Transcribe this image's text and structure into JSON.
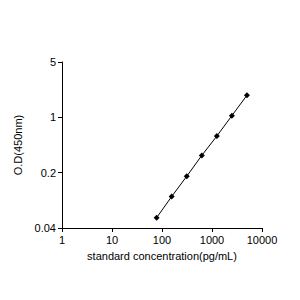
{
  "chart_data": {
    "type": "line",
    "xlabel": "standard concentration(pg/mL)",
    "ylabel": "O.D(450nm)",
    "x": [
      78.125,
      156.25,
      312.5,
      625,
      1250,
      2500,
      5000
    ],
    "values": [
      0.054,
      0.1,
      0.18,
      0.33,
      0.58,
      1.05,
      1.9
    ],
    "xlim": [
      1,
      10000
    ],
    "xticks": [
      1,
      10,
      100,
      1000,
      10000
    ],
    "ylim": [
      0.04,
      5
    ],
    "yticks": [
      0.04,
      0.2,
      1,
      5
    ],
    "log": true,
    "grid": false,
    "marker": "diamond",
    "color": "#000000"
  }
}
